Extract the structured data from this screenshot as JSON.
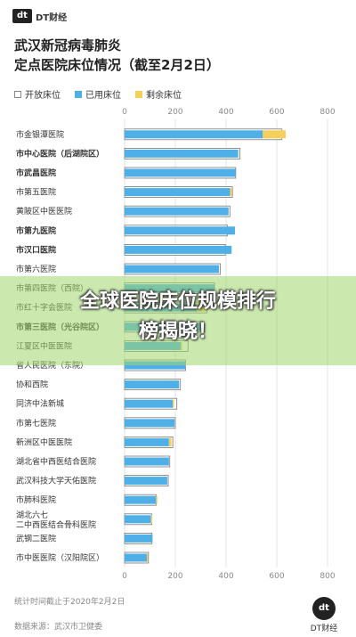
{
  "brand": {
    "mark": "dt",
    "name": "DT财经"
  },
  "chart_data": {
    "type": "bar",
    "title_lines": [
      "武汉新冠病毒肺炎",
      "定点医院床位情况（截至2月2日）"
    ],
    "legend": [
      {
        "key": "open",
        "label": "开放床位",
        "color": "#ffffff"
      },
      {
        "key": "used",
        "label": "已用床位",
        "color": "#4fb0e8"
      },
      {
        "key": "remaining",
        "label": "剩余床位",
        "color": "#f5cf5a"
      }
    ],
    "xlim": [
      0,
      800
    ],
    "xticks": [
      0,
      200,
      400,
      600,
      800
    ],
    "categories": [
      "市金银潭医院",
      "市中心医院（后湖院区）",
      "市武昌医院",
      "市第五医院",
      "黄陂区中医医院",
      "市第九医院",
      "市汉口医院",
      "市第六医院",
      "市第四医院（西院）",
      "市红十字会医院",
      "市第三医院（光谷院区）",
      "江夏区中医医院",
      "省人民医院（东院）",
      "协和西院",
      "同济中法新城",
      "市第七医院",
      "新洲区中医医院",
      "湖北省中西医结合医院",
      "武汉科技大学天佑医院",
      "市肺科医院",
      "湖北六七二中西医结合骨科医院",
      "武钢二医院",
      "市中医医院（汉阳院区）"
    ],
    "bold_categories": [
      "市中心医院（后湖院区）",
      "市武昌医院",
      "市第九医院",
      "市汉口医院",
      "市第三医院（光谷院区）"
    ],
    "series": [
      {
        "name": "开放床位",
        "values": [
          620,
          455,
          438,
          425,
          415,
          405,
          397,
          377,
          355,
          325,
          315,
          250,
          240,
          220,
          206,
          200,
          190,
          178,
          172,
          124,
          107,
          108,
          94
        ]
      },
      {
        "name": "已用床位",
        "values": [
          545,
          448,
          438,
          416,
          410,
          435,
          422,
          372,
          355,
          285,
          315,
          222,
          240,
          215,
          190,
          197,
          175,
          175,
          168,
          124,
          104,
          110,
          88
        ]
      },
      {
        "name": "剩余床位",
        "values": [
          90,
          0,
          0,
          8,
          0,
          0,
          0,
          0,
          0,
          35,
          0,
          5,
          0,
          0,
          5,
          0,
          10,
          0,
          0,
          5,
          5,
          0,
          5
        ]
      }
    ]
  },
  "overlay": {
    "line1": "全球医院床位规模排行",
    "line2": "榜揭晓！"
  },
  "footer": {
    "note": "统计时间截止于2020年2月2日",
    "source": "数据来源：武汉市卫健委"
  }
}
